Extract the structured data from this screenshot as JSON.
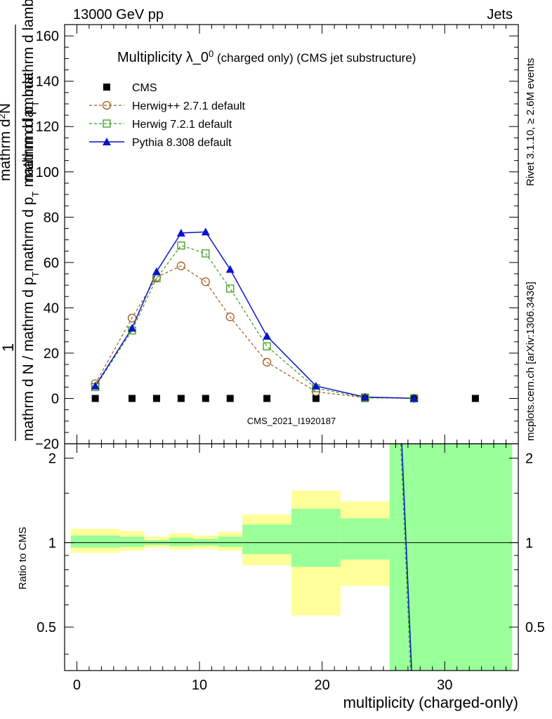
{
  "header": {
    "left": "13000 GeV pp",
    "right": "Jets"
  },
  "side": {
    "rivet": "Rivet 3.1.10, ≥ 2.6M events",
    "mcplots": "mcplots.cern.ch [arXiv:1306.3436]"
  },
  "chart_data": {
    "type": "line",
    "title": "Multiplicity λ_0",
    "title_sup": "0",
    "title_suffix": " (charged only) (CMS jet substructure)",
    "analysis_label": "CMS_2021_I1920187",
    "xlabel": "multiplicity (charged-only)",
    "ylabel_numerator": "1",
    "ylabel_denominator_main": "mathrm d N / mathrm d p",
    "ylabel_denominator_sub": "T",
    "ylabel_top_line": "mathrm d",
    "ylabel_top_sup": "2",
    "ylabel_top_rest": "N",
    "ylabel_top_second": "mathrm d p",
    "ylabel_top_second_sub": "T",
    "ylabel_top_third": " mathrm d lambda",
    "ylabel_bottom_second": "mathrm d p",
    "ylabel_bottom_second_sub": "T",
    "ylabel_bottom_third": " mathrm d lambda",
    "xlim": [
      -1,
      36
    ],
    "ylim": [
      -20,
      165
    ],
    "xticks": [
      0,
      10,
      20,
      30
    ],
    "yticks": [
      -20,
      0,
      20,
      40,
      60,
      80,
      100,
      120,
      140,
      160
    ],
    "legend": [
      "CMS",
      "Herwig++ 2.7.1 default",
      "Herwig 7.2.1 default",
      "Pythia 8.308 default"
    ],
    "series": [
      {
        "name": "CMS",
        "color": "#000000",
        "marker": "square-filled",
        "x": [
          1.5,
          4.5,
          6.5,
          8.5,
          10.5,
          12.5,
          15.5,
          19.5,
          23.5,
          27.5,
          32.5
        ],
        "y": [
          0,
          0,
          0,
          0,
          0,
          0,
          0,
          0,
          0,
          0,
          0
        ]
      },
      {
        "name": "Herwig++ 2.7.1 default",
        "color": "#a05a1a",
        "marker": "circle-open",
        "dashed": true,
        "x": [
          1.5,
          4.5,
          6.5,
          8.5,
          10.5,
          12.5,
          15.5,
          19.5,
          23.5,
          27.5
        ],
        "y": [
          6.5,
          35.5,
          53.5,
          58.5,
          51.5,
          36,
          16,
          3,
          0.3,
          0.05
        ]
      },
      {
        "name": "Herwig 7.2.1 default",
        "color": "#3c9a1e",
        "marker": "square-open",
        "dashed": true,
        "x": [
          1.5,
          4.5,
          6.5,
          8.5,
          10.5,
          12.5,
          15.5,
          19.5,
          23.5,
          27.5
        ],
        "y": [
          5,
          30,
          53,
          67.5,
          64,
          48.5,
          23,
          4.5,
          0.4,
          0.05
        ]
      },
      {
        "name": "Pythia 8.308 default",
        "color": "#0a14c8",
        "marker": "triangle-filled",
        "dashed": false,
        "x": [
          1.5,
          4.5,
          6.5,
          8.5,
          10.5,
          12.5,
          15.5,
          19.5,
          23.5,
          27.5
        ],
        "y": [
          5.5,
          31,
          56,
          73,
          73.5,
          57,
          27.5,
          5.5,
          0.6,
          0.05
        ]
      }
    ],
    "ratio": {
      "ylabel": "Ratio to CMS",
      "ylim": [
        0.35,
        2.25
      ],
      "yticks": [
        0.5,
        1,
        2
      ],
      "bins": [
        {
          "lo": -0.5,
          "hi": 3.5,
          "yellow": [
            0.92,
            1.12
          ],
          "green": [
            0.96,
            1.06
          ]
        },
        {
          "lo": 3.5,
          "hi": 5.5,
          "yellow": [
            0.935,
            1.1
          ],
          "green": [
            0.965,
            1.05
          ]
        },
        {
          "lo": 5.5,
          "hi": 7.5,
          "yellow": [
            0.96,
            1.05
          ],
          "green": [
            0.98,
            1.02
          ]
        },
        {
          "lo": 7.5,
          "hi": 9.5,
          "yellow": [
            0.945,
            1.08
          ],
          "green": [
            0.97,
            1.04
          ]
        },
        {
          "lo": 9.5,
          "hi": 11.5,
          "yellow": [
            0.95,
            1.06
          ],
          "green": [
            0.975,
            1.03
          ]
        },
        {
          "lo": 11.5,
          "hi": 13.5,
          "yellow": [
            0.935,
            1.09
          ],
          "green": [
            0.965,
            1.05
          ]
        },
        {
          "lo": 13.5,
          "hi": 17.5,
          "yellow": [
            0.83,
            1.26
          ],
          "green": [
            0.91,
            1.16
          ]
        },
        {
          "lo": 17.5,
          "hi": 21.5,
          "yellow": [
            0.55,
            1.53
          ],
          "green": [
            0.82,
            1.32
          ]
        },
        {
          "lo": 21.5,
          "hi": 25.5,
          "yellow": [
            0.7,
            1.4
          ],
          "green": [
            0.87,
            1.22
          ]
        },
        {
          "lo": 25.5,
          "hi": 35.5,
          "yellow": [
            0.3,
            3.0
          ],
          "green": [
            0.3,
            3.0
          ]
        }
      ],
      "steep_line": {
        "x": [
          26.5,
          27.3
        ],
        "y": [
          2.25,
          0.35
        ]
      }
    }
  }
}
